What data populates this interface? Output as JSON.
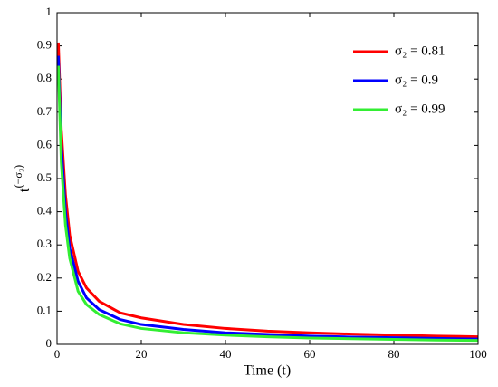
{
  "chart_data": {
    "type": "line",
    "x_label": "Time (t)",
    "y_label": {
      "base": "t",
      "exponent": "(−σ₂)"
    },
    "x": [
      0.3,
      1,
      2,
      3,
      5,
      7,
      10,
      15,
      20,
      30,
      40,
      50,
      60,
      70,
      80,
      90,
      100
    ],
    "series": [
      {
        "name": "σ₂ = 0.81",
        "color": "#ff0000",
        "values": [
          0.91,
          0.65,
          0.45,
          0.33,
          0.22,
          0.17,
          0.13,
          0.095,
          0.08,
          0.06,
          0.048,
          0.04,
          0.035,
          0.031,
          0.028,
          0.025,
          0.023
        ]
      },
      {
        "name": "σ₂ = 0.9",
        "color": "#0000ff",
        "values": [
          0.87,
          0.6,
          0.4,
          0.29,
          0.19,
          0.14,
          0.105,
          0.075,
          0.06,
          0.045,
          0.035,
          0.03,
          0.025,
          0.022,
          0.02,
          0.018,
          0.016
        ]
      },
      {
        "name": "σ₂ = 0.99",
        "color": "#33ee33",
        "values": [
          0.84,
          0.55,
          0.36,
          0.26,
          0.16,
          0.12,
          0.09,
          0.062,
          0.048,
          0.035,
          0.028,
          0.023,
          0.019,
          0.017,
          0.015,
          0.013,
          0.012
        ]
      }
    ],
    "xlim": [
      0,
      100
    ],
    "xticks": [
      0,
      20,
      40,
      60,
      80,
      100
    ],
    "ylim": [
      0,
      1
    ],
    "yticks": [
      0,
      0.1,
      0.2,
      0.3,
      0.4,
      0.5,
      0.6,
      0.7,
      0.8,
      0.9,
      1
    ],
    "legend": "upper right"
  }
}
